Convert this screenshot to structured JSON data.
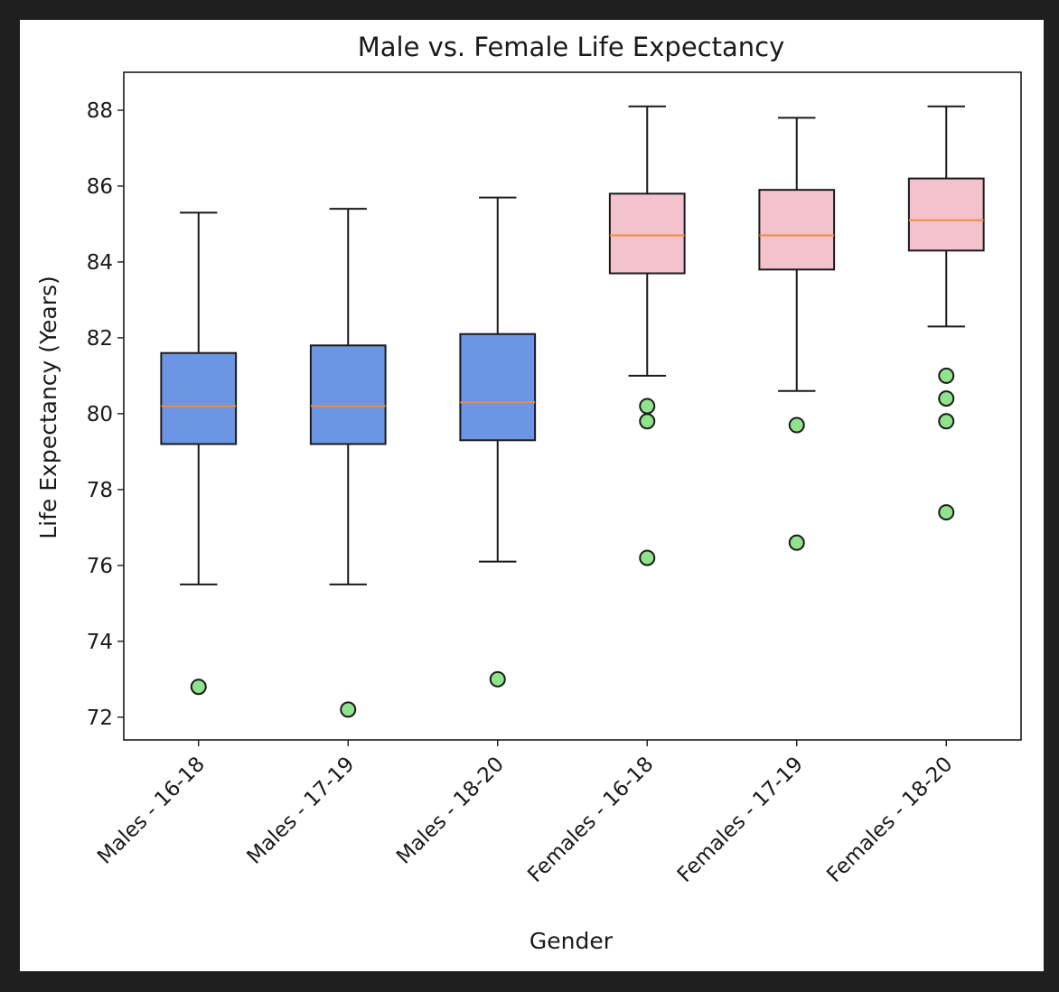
{
  "chart_data": {
    "type": "boxplot",
    "title": "Male vs. Female Life Expectancy",
    "xlabel": "Gender",
    "ylabel": "Life Expectancy (Years)",
    "ylim": [
      71.4,
      89
    ],
    "yticks": [
      72,
      74,
      76,
      78,
      80,
      82,
      84,
      86,
      88
    ],
    "grid": false,
    "categories": [
      "Males - 16-18",
      "Males - 17-19",
      "Males - 18-20",
      "Females - 16-18",
      "Females - 17-19",
      "Females - 18-20"
    ],
    "boxes": [
      {
        "whisker_low": 75.5,
        "q1": 79.2,
        "median": 80.2,
        "q3": 81.6,
        "whisker_high": 85.3,
        "outliers": [
          72.8
        ]
      },
      {
        "whisker_low": 75.5,
        "q1": 79.2,
        "median": 80.2,
        "q3": 81.8,
        "whisker_high": 85.4,
        "outliers": [
          72.2
        ]
      },
      {
        "whisker_low": 76.1,
        "q1": 79.3,
        "median": 80.3,
        "q3": 82.1,
        "whisker_high": 85.7,
        "outliers": [
          73.0
        ]
      },
      {
        "whisker_low": 81.0,
        "q1": 83.7,
        "median": 84.7,
        "q3": 85.8,
        "whisker_high": 88.1,
        "outliers": [
          80.2,
          79.8,
          76.2
        ]
      },
      {
        "whisker_low": 80.6,
        "q1": 83.8,
        "median": 84.7,
        "q3": 85.9,
        "whisker_high": 87.8,
        "outliers": [
          79.7,
          76.6
        ]
      },
      {
        "whisker_low": 82.3,
        "q1": 84.3,
        "median": 85.1,
        "q3": 86.2,
        "whisker_high": 88.1,
        "outliers": [
          81.0,
          80.4,
          79.8,
          77.4
        ]
      }
    ],
    "colors": {
      "males_box": "#6c95e3",
      "females_box": "#f4c2cd",
      "median": "#f28a3c",
      "outlier": "#90e28d",
      "line": "#1a1a1a"
    }
  }
}
